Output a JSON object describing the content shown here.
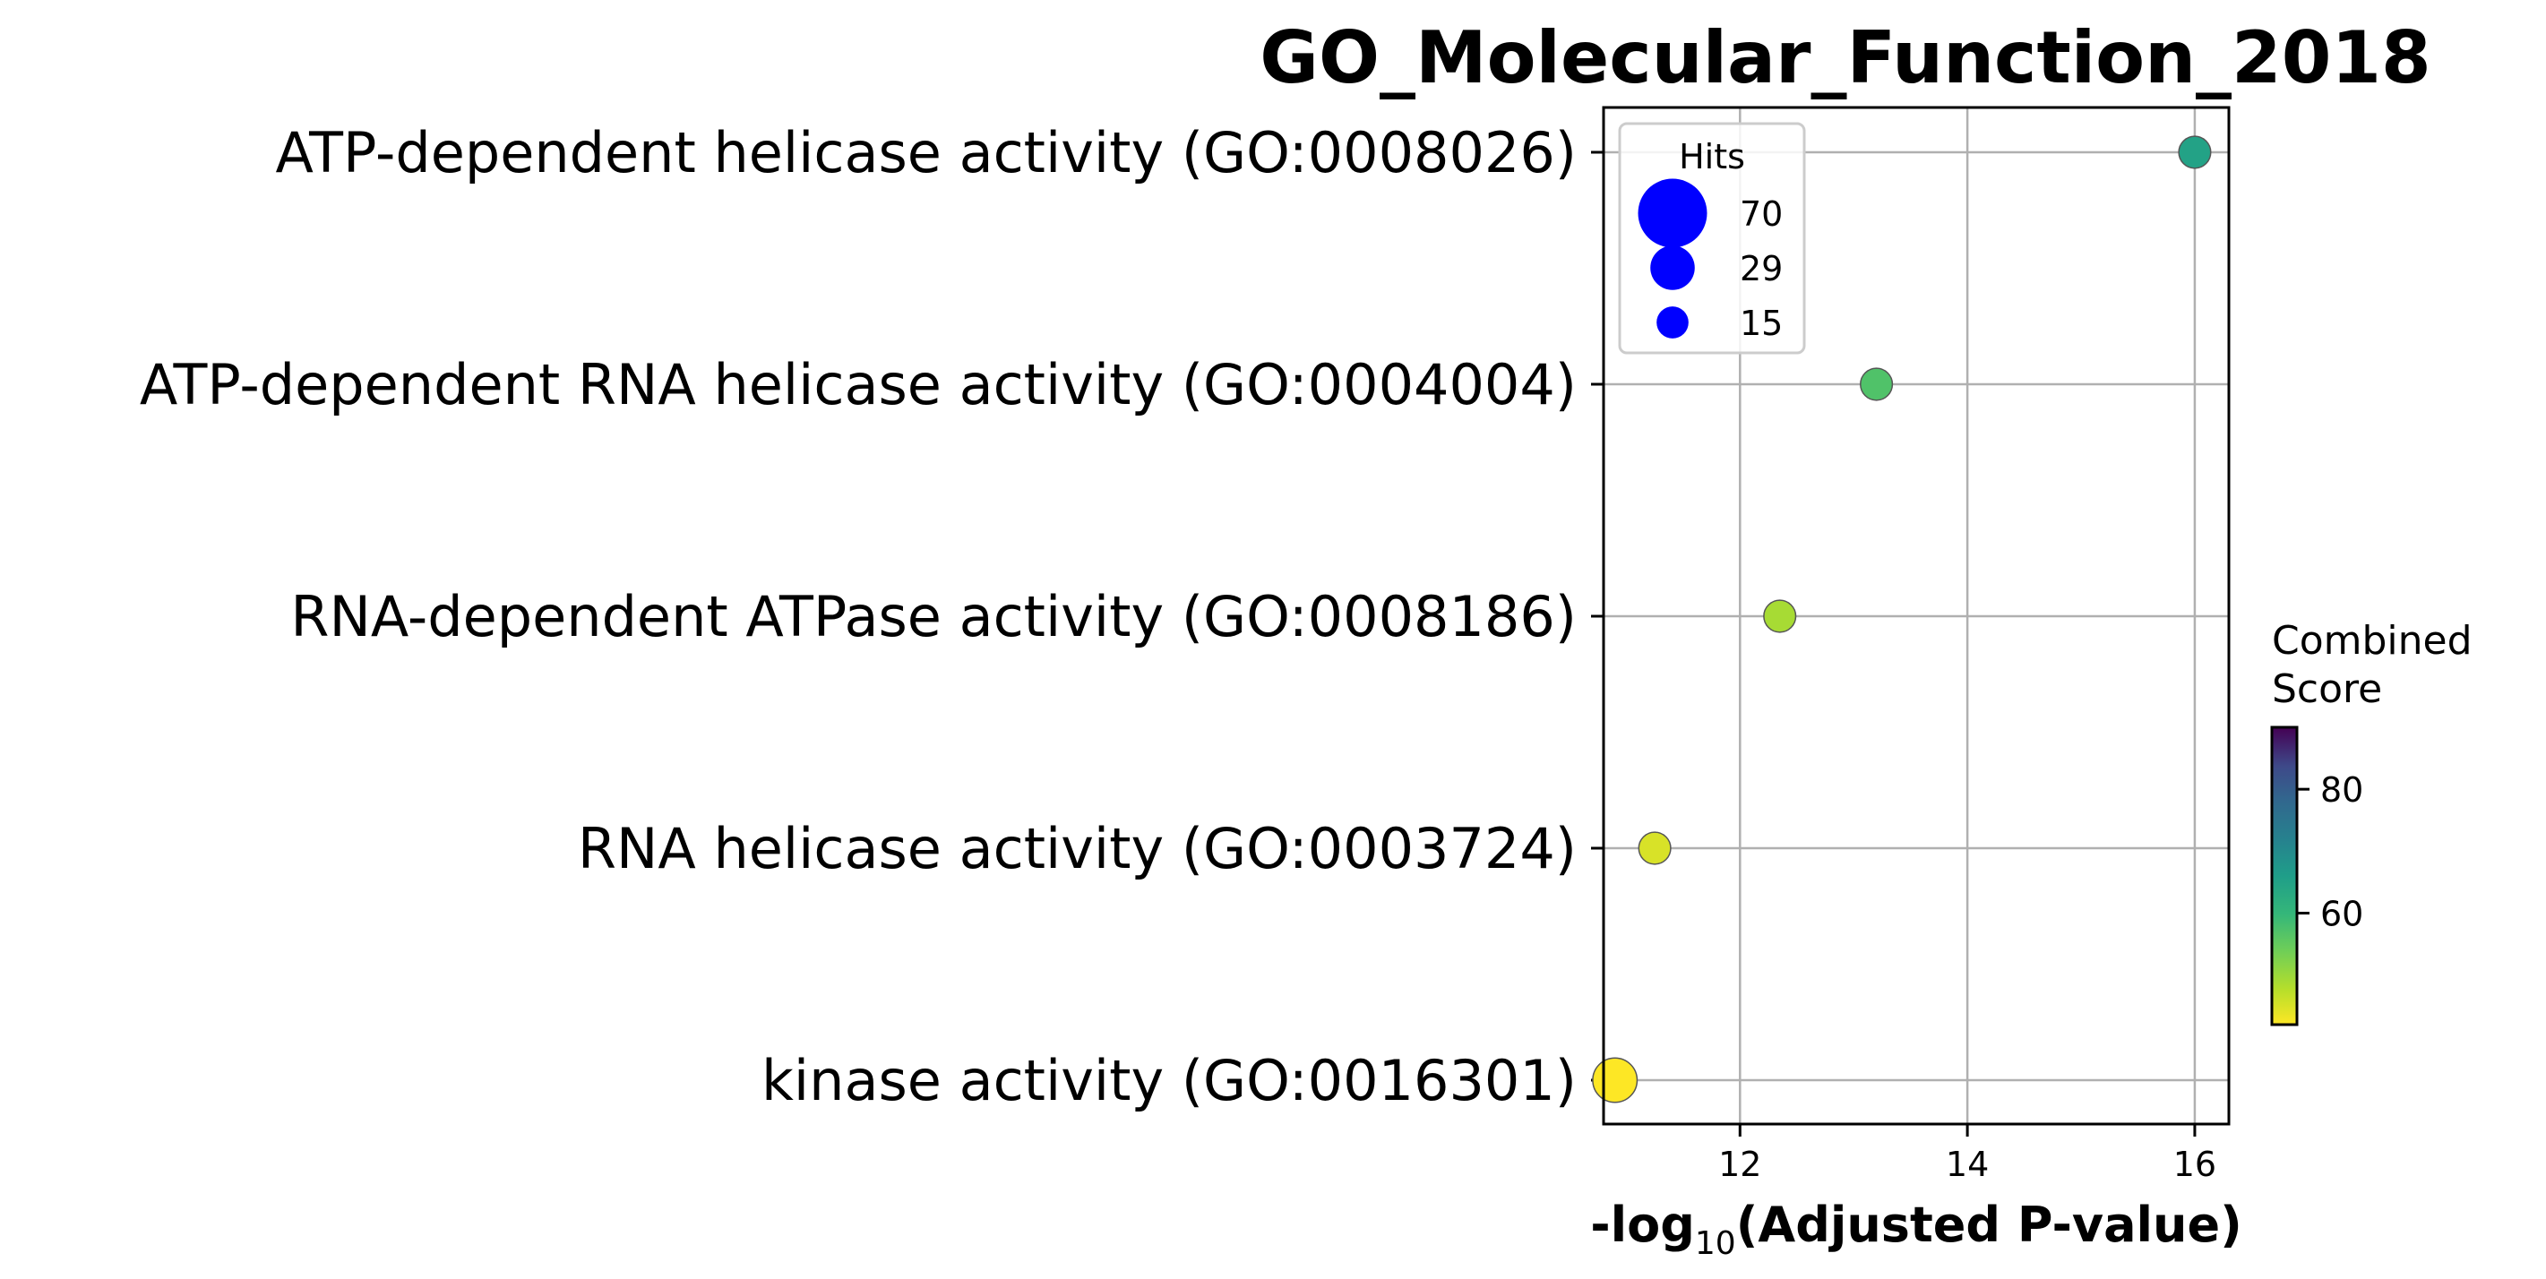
{
  "chart_data": {
    "type": "scatter",
    "title": "GO_Molecular_Function_2018",
    "xlabel_prefix": "-log",
    "xlabel_sub": "10",
    "xlabel_suffix": "(Adjusted P-value)",
    "xlim": [
      10.8,
      16.3
    ],
    "xticks": [
      12,
      14,
      16
    ],
    "grid": true,
    "categories": [
      "ATP-dependent helicase activity (GO:0008026)",
      "ATP-dependent RNA helicase activity (GO:0004004)",
      "RNA-dependent ATPase activity (GO:0008186)",
      "RNA helicase activity (GO:0003724)",
      "kinase activity (GO:0016301)"
    ],
    "points": [
      {
        "term": "ATP-dependent helicase activity (GO:0008026)",
        "neg_log10_adj_p": 16.0,
        "hits": 15,
        "combined_score": 65
      },
      {
        "term": "ATP-dependent RNA helicase activity (GO:0004004)",
        "neg_log10_adj_p": 13.2,
        "hits": 15,
        "combined_score": 57
      },
      {
        "term": "RNA-dependent ATPase activity (GO:0008186)",
        "neg_log10_adj_p": 12.35,
        "hits": 15,
        "combined_score": 49
      },
      {
        "term": "RNA helicase activity (GO:0003724)",
        "neg_log10_adj_p": 11.25,
        "hits": 15,
        "combined_score": 45
      },
      {
        "term": "kinase activity (GO:0016301)",
        "neg_log10_adj_p": 10.9,
        "hits": 29,
        "combined_score": 42
      }
    ],
    "size_legend": {
      "title": "Hits",
      "placement": "top-left",
      "entries": [
        {
          "label": "70",
          "hits": 70
        },
        {
          "label": "29",
          "hits": 29
        },
        {
          "label": "15",
          "hits": 15
        }
      ],
      "marker_color": "#0000ff"
    },
    "colorbar": {
      "title_line1": "Combined",
      "title_line2": "Score",
      "colormap": "viridis_r",
      "range": [
        42,
        90
      ],
      "ticks": [
        60,
        80
      ]
    }
  }
}
